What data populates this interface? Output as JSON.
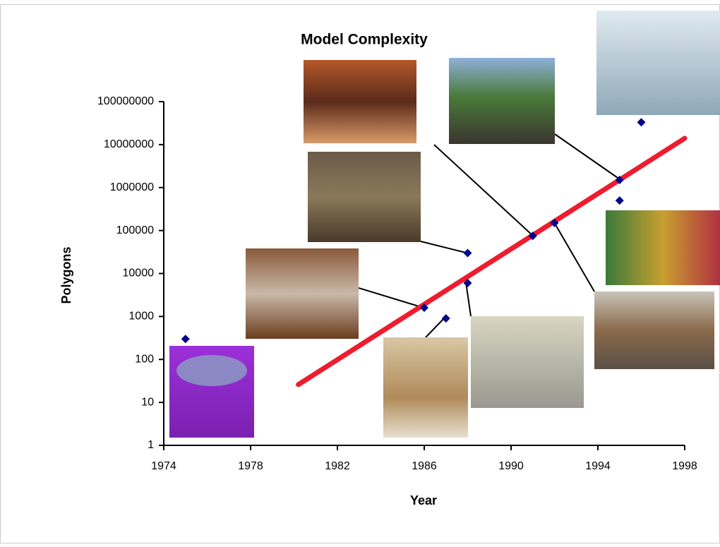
{
  "chart_data": {
    "type": "scatter",
    "title": "Model Complexity",
    "x_label": "Year",
    "y_label": "Polygons",
    "log_y": true,
    "grid": false,
    "xlim": [
      1974,
      1998
    ],
    "xticks": [
      1974,
      1978,
      1982,
      1986,
      1990,
      1994,
      1998
    ],
    "ylim": [
      1,
      100000000
    ],
    "yticks": [
      1,
      10,
      100,
      1000,
      10000,
      100000,
      1000000,
      10000000,
      100000000
    ],
    "series": [
      {
        "type": "scatter",
        "color": "#00008b",
        "x": [
          1975,
          1986,
          1987,
          1988,
          1988,
          1991,
          1992,
          1995,
          1995,
          1996
        ],
        "values": [
          300,
          1600,
          900,
          30000,
          6000,
          75000,
          150000,
          1500000,
          500000,
          33000000
        ]
      },
      {
        "type": "line",
        "color": "#ee1c2e",
        "x": [
          1980.2,
          1998
        ],
        "values": [
          26,
          14000000
        ]
      }
    ]
  }
}
